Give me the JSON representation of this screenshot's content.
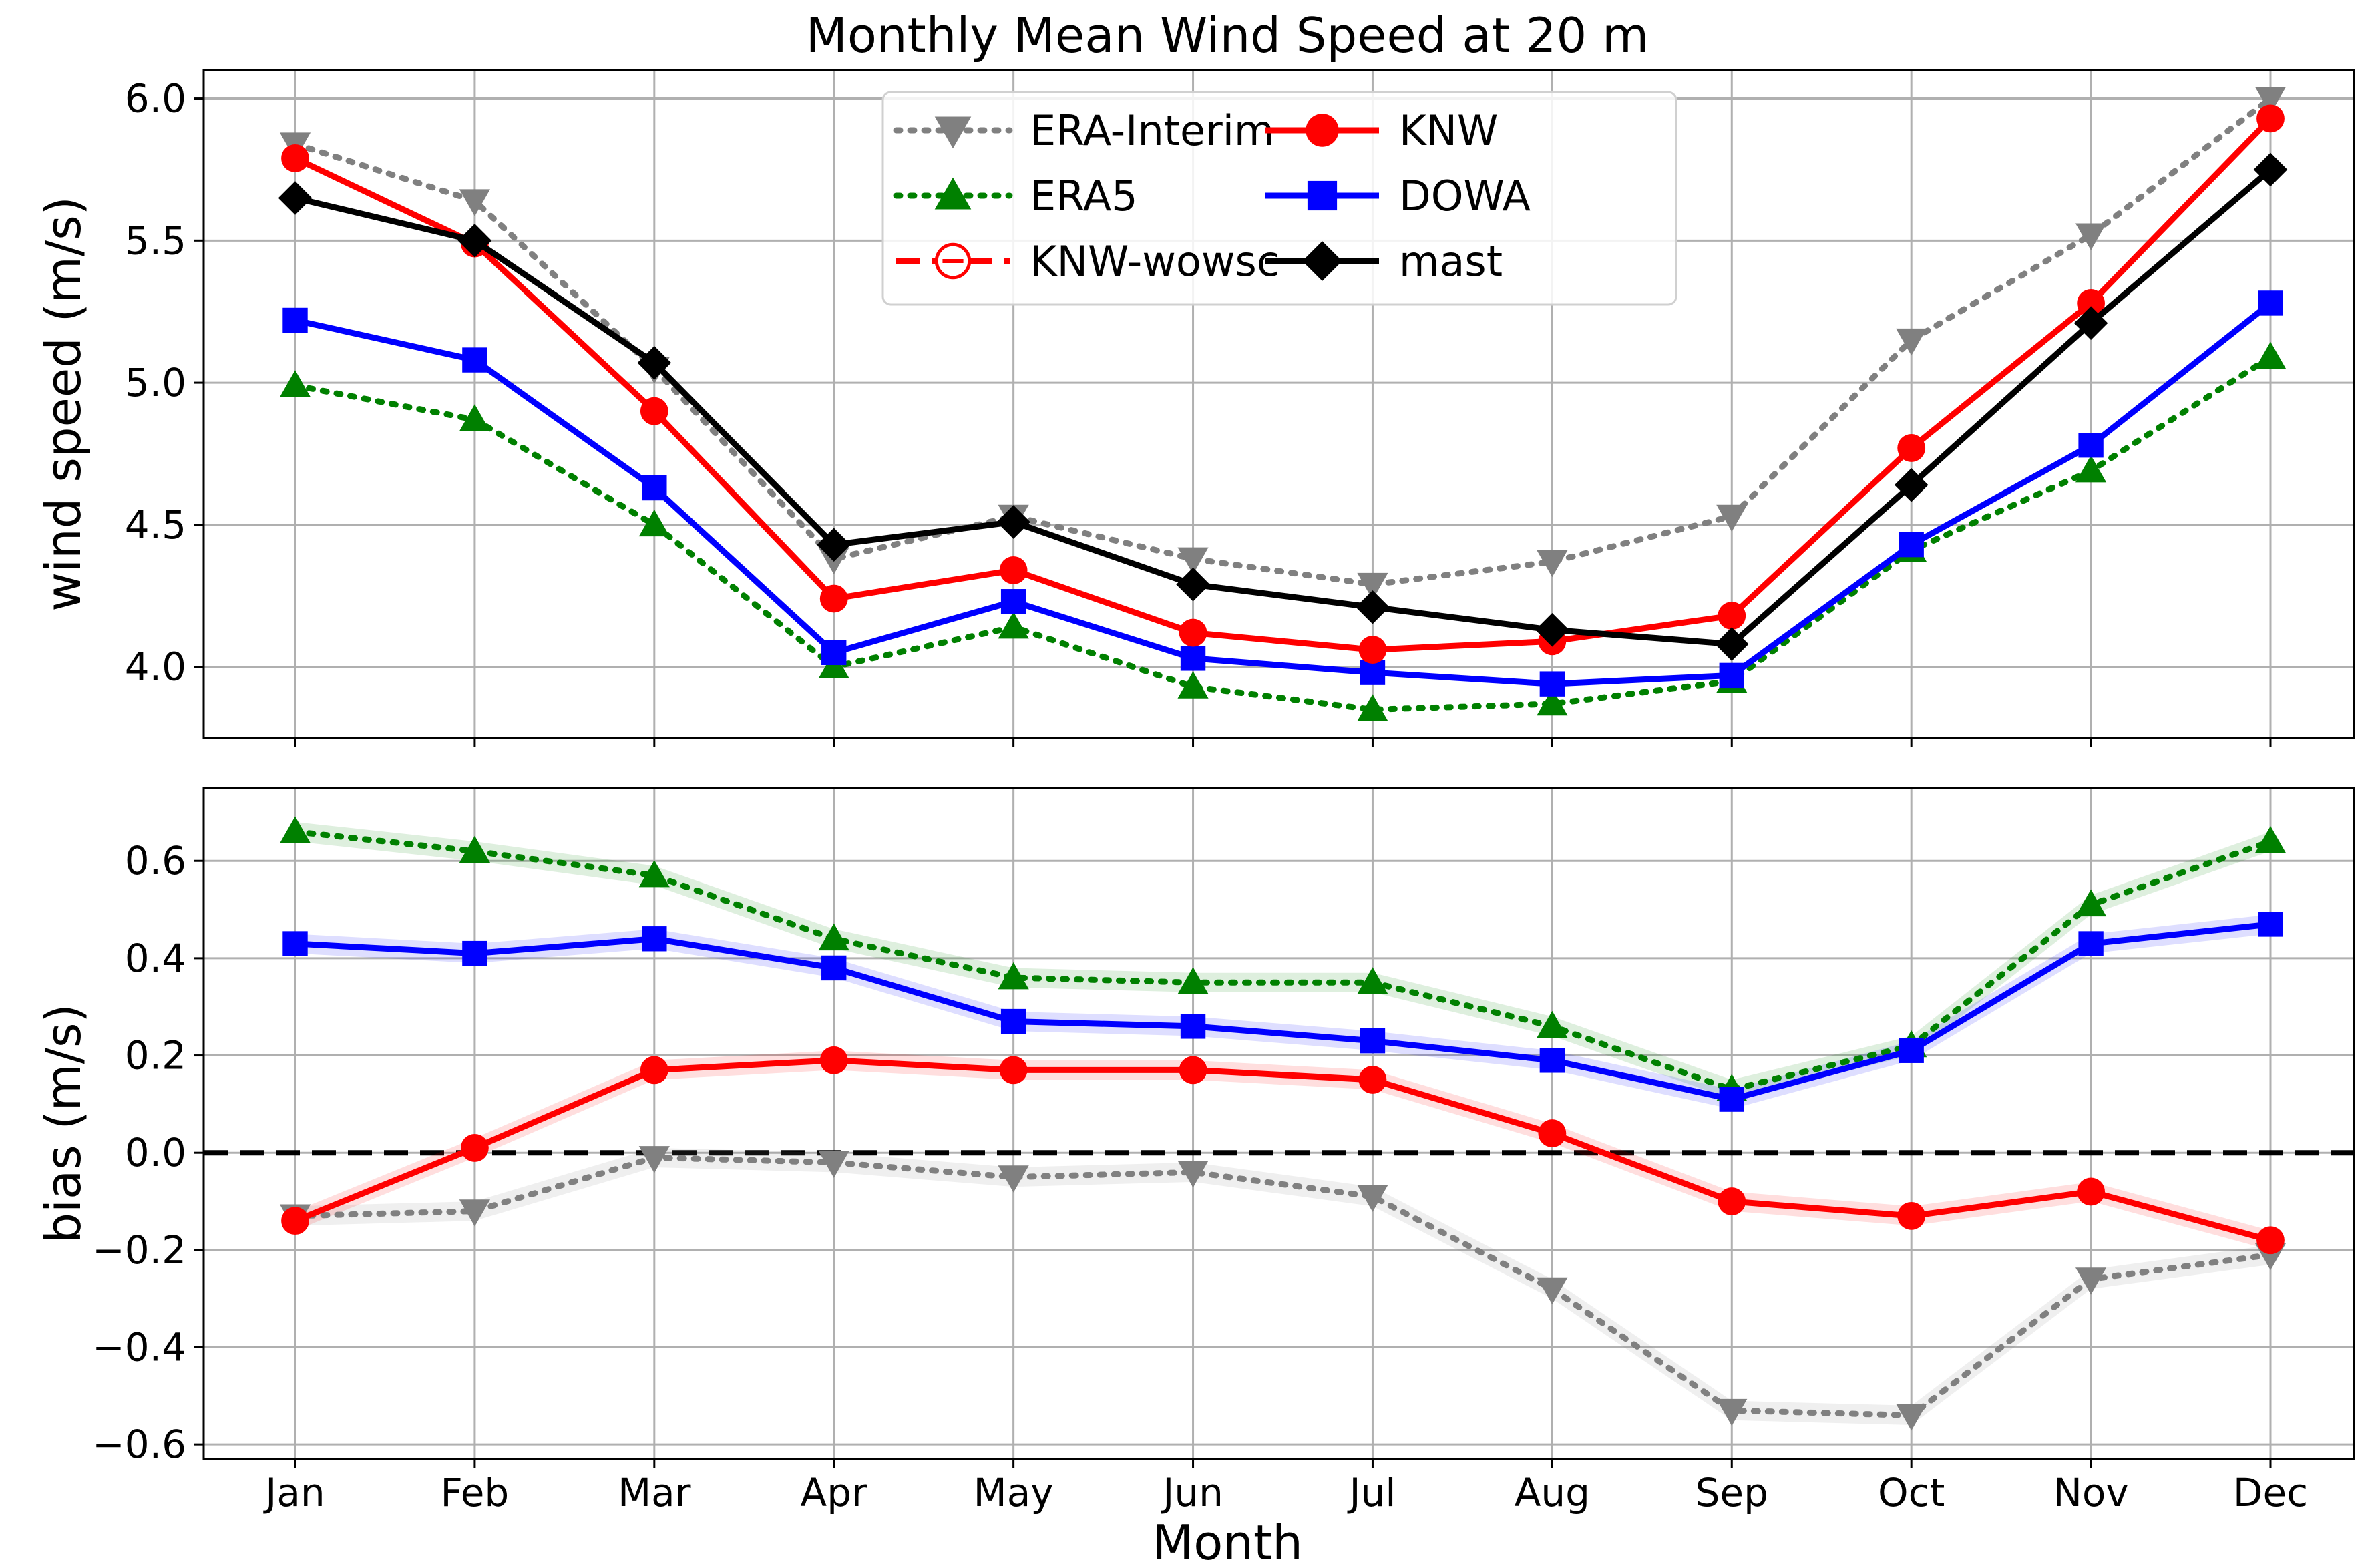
{
  "chart_data": {
    "type": "line",
    "title": "Monthly Mean Wind Speed at 20 m",
    "xlabel": "Month",
    "categories": [
      "Jan",
      "Feb",
      "Mar",
      "Apr",
      "May",
      "Jun",
      "Jul",
      "Aug",
      "Sep",
      "Oct",
      "Nov",
      "Dec"
    ],
    "legend": {
      "position": "upper-center",
      "columns": [
        [
          "ERA-Interim",
          "ERA5",
          "KNW-wowsc"
        ],
        [
          "KNW",
          "DOWA",
          "mast"
        ]
      ]
    },
    "series_styles": {
      "ERA-Interim": {
        "color": "#808080",
        "marker": "triangle-down",
        "line": "dotted"
      },
      "ERA5": {
        "color": "#008000",
        "marker": "triangle-up",
        "line": "dotted"
      },
      "KNW-wowsc": {
        "color": "#ff0000",
        "marker": "circle-open",
        "line": "dashed"
      },
      "KNW": {
        "color": "#ff0000",
        "marker": "circle",
        "line": "solid"
      },
      "DOWA": {
        "color": "#0000ff",
        "marker": "square",
        "line": "solid"
      },
      "mast": {
        "color": "#000000",
        "marker": "diamond",
        "line": "solid"
      }
    },
    "panels": [
      {
        "id": "top",
        "ylabel": "wind speed (m/s)",
        "ylim": [
          3.75,
          6.1
        ],
        "yticks": [
          4.0,
          4.5,
          5.0,
          5.5,
          6.0
        ],
        "ytick_labels": [
          "4.0",
          "4.5",
          "5.0",
          "5.5",
          "6.0"
        ],
        "grid": true,
        "series": [
          {
            "name": "ERA-Interim",
            "values": [
              5.84,
              5.64,
              5.05,
              4.38,
              4.53,
              4.38,
              4.29,
              4.37,
              4.53,
              5.15,
              5.52,
              6.0
            ]
          },
          {
            "name": "ERA5",
            "values": [
              4.99,
              4.87,
              4.5,
              4.0,
              4.14,
              3.93,
              3.85,
              3.87,
              3.95,
              4.41,
              4.69,
              5.09
            ]
          },
          {
            "name": "DOWA",
            "values": [
              5.22,
              5.08,
              4.63,
              4.05,
              4.23,
              4.03,
              3.98,
              3.94,
              3.97,
              4.43,
              4.78,
              5.28
            ]
          },
          {
            "name": "KNW",
            "values": [
              5.79,
              5.49,
              4.9,
              4.24,
              4.34,
              4.12,
              4.06,
              4.09,
              4.18,
              4.77,
              5.28,
              5.93
            ]
          },
          {
            "name": "mast",
            "values": [
              5.65,
              5.5,
              5.07,
              4.43,
              4.51,
              4.29,
              4.21,
              4.13,
              4.08,
              4.64,
              5.21,
              5.75
            ]
          }
        ]
      },
      {
        "id": "bottom",
        "ylabel": "bias (m/s)",
        "ylim": [
          -0.63,
          0.75
        ],
        "yticks": [
          -0.6,
          -0.4,
          -0.2,
          0.0,
          0.2,
          0.4,
          0.6
        ],
        "ytick_labels": [
          "−0.6",
          "−0.4",
          "−0.2",
          "0.0",
          "0.2",
          "0.4",
          "0.6"
        ],
        "grid": true,
        "reference_line": {
          "y": 0.0,
          "style": "dashed",
          "color": "#000000"
        },
        "band_halfwidth": 0.02,
        "series": [
          {
            "name": "ERA-Interim",
            "values": [
              -0.13,
              -0.12,
              -0.01,
              -0.02,
              -0.05,
              -0.04,
              -0.09,
              -0.28,
              -0.53,
              -0.54,
              -0.26,
              -0.21
            ]
          },
          {
            "name": "ERA5",
            "values": [
              0.66,
              0.62,
              0.57,
              0.44,
              0.36,
              0.35,
              0.35,
              0.26,
              0.13,
              0.22,
              0.51,
              0.64
            ]
          },
          {
            "name": "DOWA",
            "values": [
              0.43,
              0.41,
              0.44,
              0.38,
              0.27,
              0.26,
              0.23,
              0.19,
              0.11,
              0.21,
              0.43,
              0.47
            ]
          },
          {
            "name": "KNW",
            "values": [
              -0.14,
              0.01,
              0.17,
              0.19,
              0.17,
              0.17,
              0.15,
              0.04,
              -0.1,
              -0.13,
              -0.08,
              -0.18
            ]
          }
        ]
      }
    ]
  }
}
